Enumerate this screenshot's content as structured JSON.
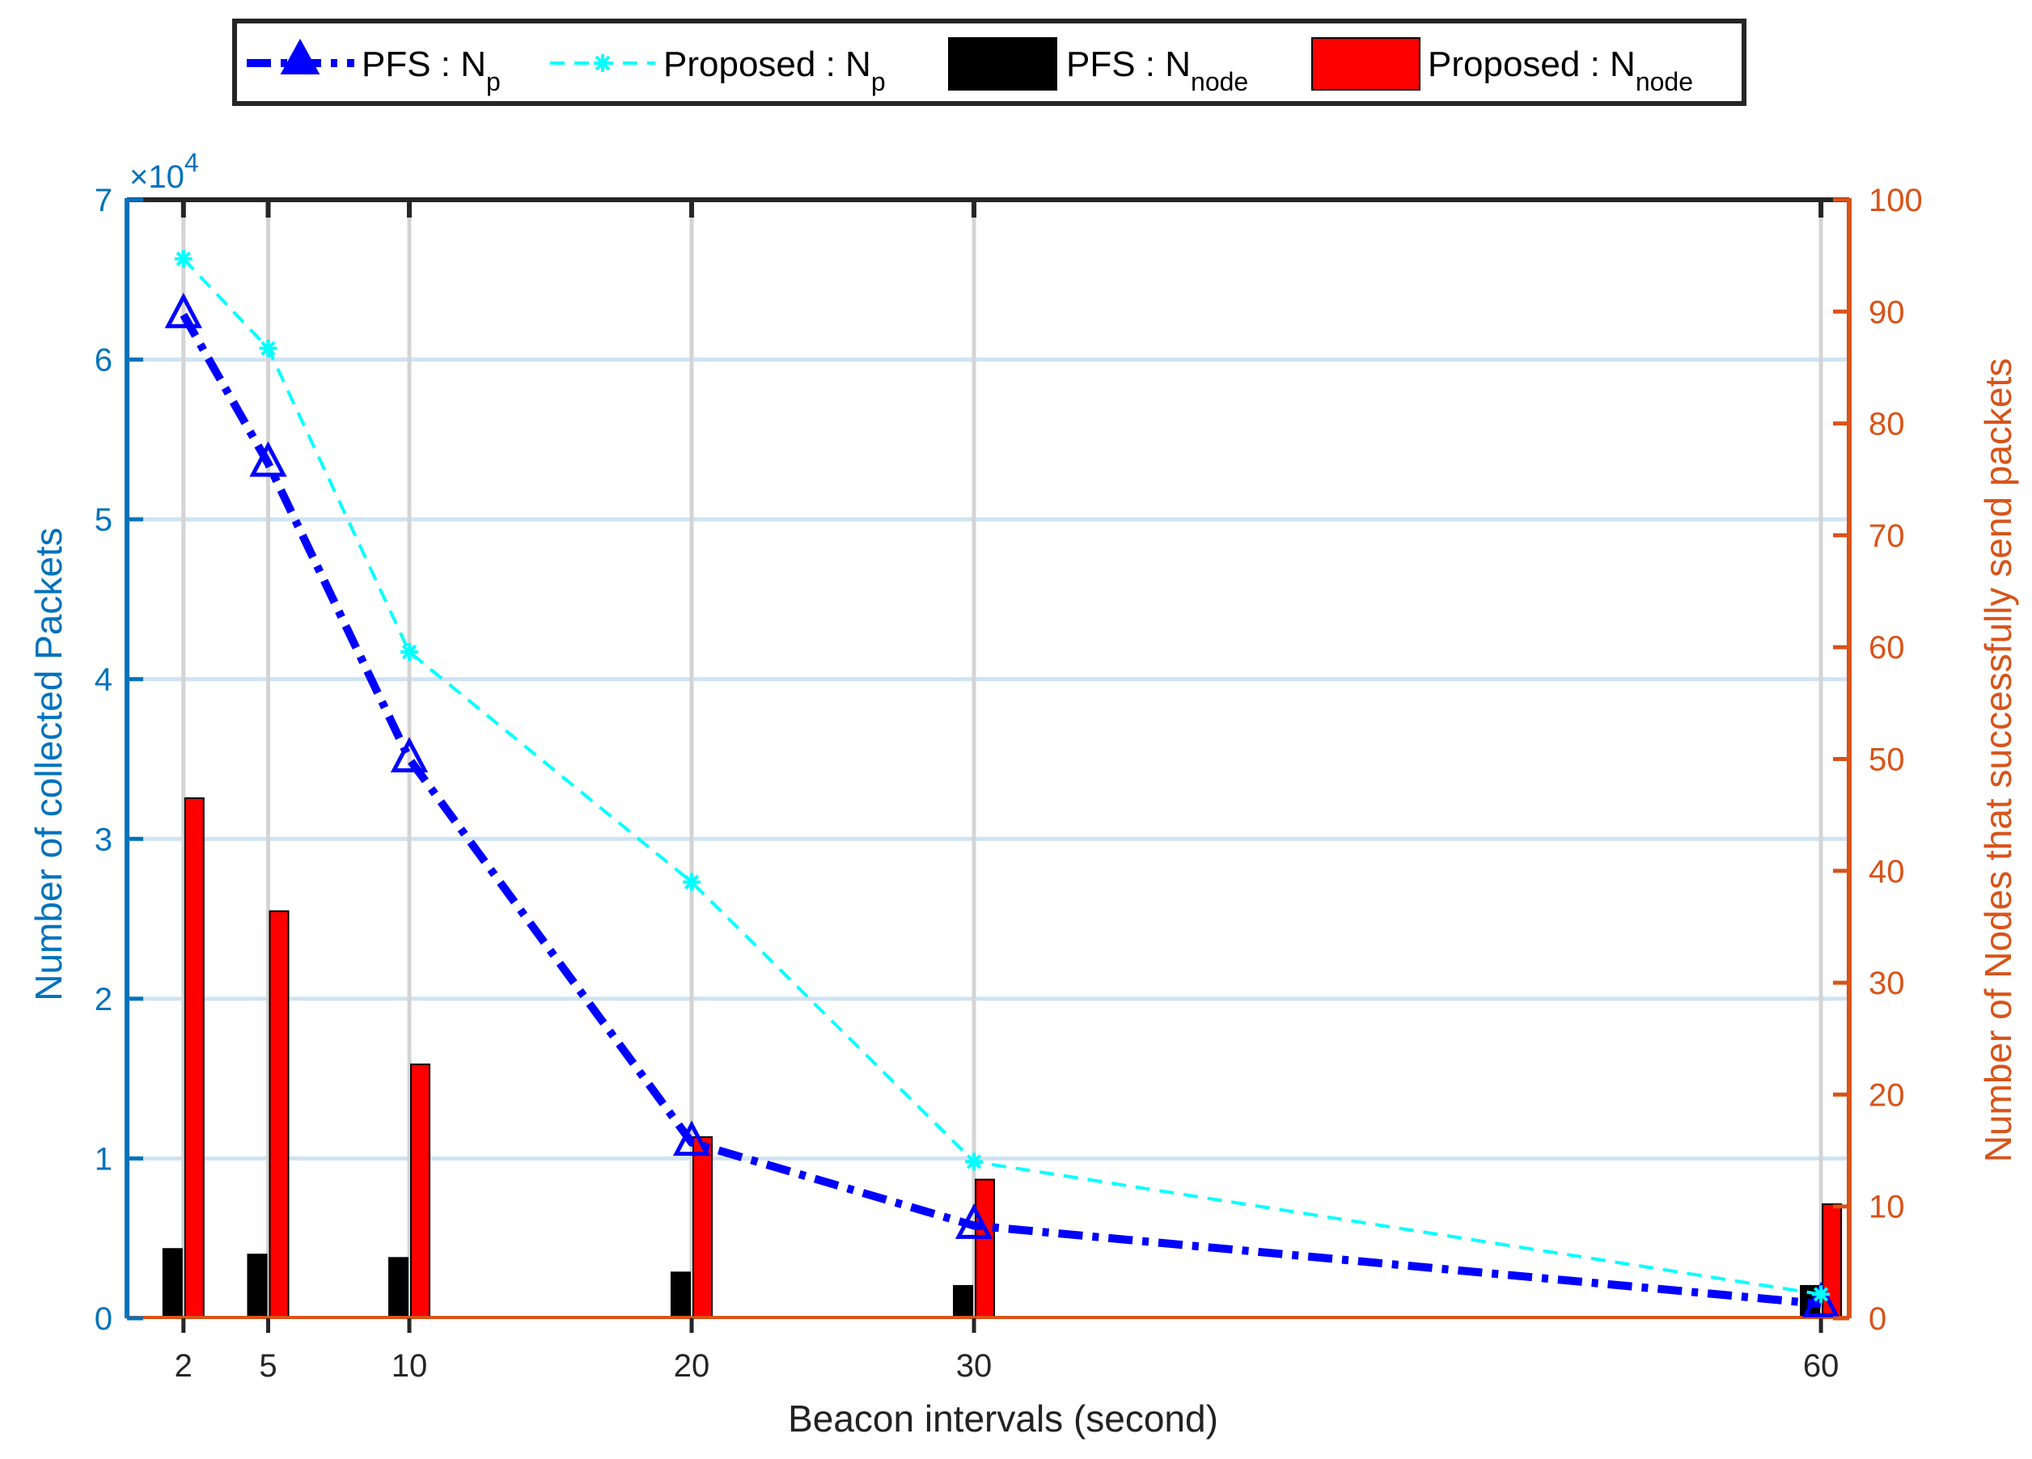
{
  "chart_data": {
    "type": "bar+line",
    "title": "",
    "xlabel": "Beacon intervals (second)",
    "ylabel_left": "Number of collected Packets",
    "ylabel_right": "Number of Nodes that successfully send packets",
    "exponent_label": "×10",
    "exponent_power": "4",
    "x_domain": [
      0,
      61
    ],
    "x_ticks": [
      2,
      5,
      10,
      20,
      30,
      60
    ],
    "y_left_lim": [
      0,
      7
    ],
    "y_left_ticks": [
      0,
      1,
      2,
      3,
      4,
      5,
      6,
      7
    ],
    "y_right_lim": [
      0,
      100
    ],
    "y_right_ticks": [
      0,
      10,
      20,
      30,
      40,
      50,
      60,
      70,
      80,
      90,
      100
    ],
    "grid": true,
    "legend_position": "top",
    "x": [
      2,
      5,
      10,
      20,
      30,
      60
    ],
    "line_series": [
      {
        "name": "PFS : N",
        "sub": "p",
        "axis": "left",
        "color": "#0000ff",
        "marker": "triangle",
        "values": [
          6.28,
          5.35,
          3.5,
          1.1,
          0.58,
          0.09
        ]
      },
      {
        "name": "Proposed : N",
        "sub": "p",
        "axis": "left",
        "color": "#00ffff",
        "marker": "asterisk",
        "values": [
          6.63,
          6.07,
          4.17,
          2.73,
          0.98,
          0.15
        ]
      }
    ],
    "bar_series": [
      {
        "name": "PFS : N",
        "sub": "node",
        "axis": "right",
        "color": "#000000",
        "values": [
          6.2,
          5.7,
          5.4,
          4.1,
          2.9,
          2.9
        ]
      },
      {
        "name": "Proposed : N",
        "sub": "node",
        "axis": "right",
        "color": "#ff0000",
        "values": [
          46.5,
          36.4,
          22.7,
          16.2,
          12.4,
          10.2
        ]
      }
    ],
    "colors": {
      "left_axis": "#0072bd",
      "right_axis": "#d95319",
      "grid_h": "#cfe3f3",
      "grid_v": "#d4d4d4"
    }
  }
}
